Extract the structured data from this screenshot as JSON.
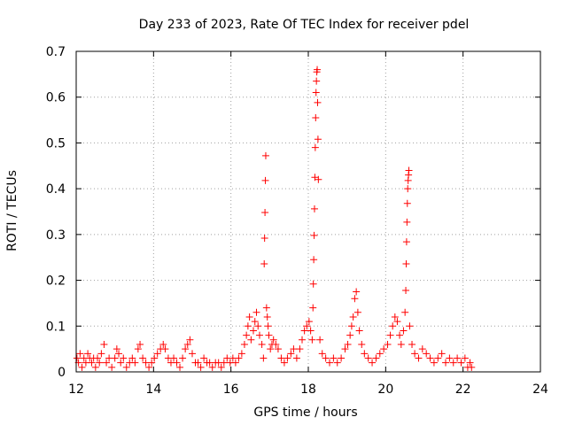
{
  "chart_data": {
    "type": "scatter",
    "title": "Day 233 of 2023, Rate Of TEC Index for receiver pdel",
    "xlabel": "GPS time / hours",
    "ylabel": "ROTI / TECUs",
    "xlim": [
      12,
      24
    ],
    "ylim": [
      0,
      0.7
    ],
    "xticks": [
      12,
      14,
      16,
      18,
      20,
      22,
      24
    ],
    "yticks": [
      0,
      0.1,
      0.2,
      0.3,
      0.4,
      0.5,
      0.6,
      0.7
    ],
    "xtick_labels": [
      "12",
      "14",
      "16",
      "18",
      "20",
      "22",
      "24"
    ],
    "ytick_labels": [
      "0",
      "0.1",
      "0.2",
      "0.3",
      "0.4",
      "0.5",
      "0.6",
      "0.7"
    ],
    "grid": true,
    "legend": false,
    "marker": "+",
    "color": "#ff0000",
    "series": [
      {
        "points": [
          [
            12.02,
            0.03
          ],
          [
            12.06,
            0.02
          ],
          [
            12.1,
            0.04
          ],
          [
            12.15,
            0.01
          ],
          [
            12.2,
            0.03
          ],
          [
            12.25,
            0.02
          ],
          [
            12.3,
            0.04
          ],
          [
            12.35,
            0.03
          ],
          [
            12.4,
            0.02
          ],
          [
            12.45,
            0.03
          ],
          [
            12.5,
            0.01
          ],
          [
            12.55,
            0.03
          ],
          [
            12.6,
            0.02
          ],
          [
            12.65,
            0.04
          ],
          [
            12.72,
            0.06
          ],
          [
            12.78,
            0.02
          ],
          [
            12.85,
            0.03
          ],
          [
            12.92,
            0.01
          ],
          [
            13.0,
            0.03
          ],
          [
            13.05,
            0.05
          ],
          [
            13.1,
            0.04
          ],
          [
            13.15,
            0.02
          ],
          [
            13.22,
            0.03
          ],
          [
            13.3,
            0.01
          ],
          [
            13.38,
            0.02
          ],
          [
            13.45,
            0.03
          ],
          [
            13.52,
            0.02
          ],
          [
            13.6,
            0.05
          ],
          [
            13.65,
            0.06
          ],
          [
            13.72,
            0.03
          ],
          [
            13.8,
            0.02
          ],
          [
            13.88,
            0.01
          ],
          [
            13.95,
            0.02
          ],
          [
            14.02,
            0.03
          ],
          [
            14.1,
            0.04
          ],
          [
            14.18,
            0.05
          ],
          [
            14.25,
            0.06
          ],
          [
            14.3,
            0.05
          ],
          [
            14.38,
            0.03
          ],
          [
            14.45,
            0.02
          ],
          [
            14.52,
            0.03
          ],
          [
            14.6,
            0.02
          ],
          [
            14.68,
            0.01
          ],
          [
            14.75,
            0.03
          ],
          [
            14.82,
            0.05
          ],
          [
            14.88,
            0.06
          ],
          [
            14.94,
            0.07
          ],
          [
            15.0,
            0.04
          ],
          [
            15.08,
            0.02
          ],
          [
            15.15,
            0.02
          ],
          [
            15.22,
            0.01
          ],
          [
            15.3,
            0.03
          ],
          [
            15.38,
            0.02
          ],
          [
            15.45,
            0.02
          ],
          [
            15.52,
            0.01
          ],
          [
            15.6,
            0.02
          ],
          [
            15.68,
            0.02
          ],
          [
            15.75,
            0.01
          ],
          [
            15.82,
            0.02
          ],
          [
            15.9,
            0.03
          ],
          [
            15.98,
            0.02
          ],
          [
            16.05,
            0.03
          ],
          [
            16.12,
            0.02
          ],
          [
            16.2,
            0.03
          ],
          [
            16.28,
            0.04
          ],
          [
            16.35,
            0.06
          ],
          [
            16.4,
            0.08
          ],
          [
            16.44,
            0.1
          ],
          [
            16.48,
            0.12
          ],
          [
            16.52,
            0.07
          ],
          [
            16.58,
            0.09
          ],
          [
            16.62,
            0.11
          ],
          [
            16.66,
            0.13
          ],
          [
            16.7,
            0.1
          ],
          [
            16.74,
            0.08
          ],
          [
            16.8,
            0.06
          ],
          [
            16.84,
            0.03
          ],
          [
            16.86,
            0.236
          ],
          [
            16.87,
            0.292
          ],
          [
            16.88,
            0.348
          ],
          [
            16.89,
            0.418
          ],
          [
            16.9,
            0.472
          ],
          [
            16.92,
            0.14
          ],
          [
            16.94,
            0.12
          ],
          [
            16.96,
            0.1
          ],
          [
            16.98,
            0.08
          ],
          [
            17.02,
            0.05
          ],
          [
            17.06,
            0.06
          ],
          [
            17.1,
            0.07
          ],
          [
            17.16,
            0.06
          ],
          [
            17.22,
            0.05
          ],
          [
            17.3,
            0.03
          ],
          [
            17.38,
            0.02
          ],
          [
            17.46,
            0.03
          ],
          [
            17.55,
            0.04
          ],
          [
            17.62,
            0.05
          ],
          [
            17.7,
            0.03
          ],
          [
            17.78,
            0.05
          ],
          [
            17.84,
            0.07
          ],
          [
            17.9,
            0.09
          ],
          [
            17.96,
            0.1
          ],
          [
            18.02,
            0.11
          ],
          [
            18.06,
            0.09
          ],
          [
            18.1,
            0.07
          ],
          [
            18.12,
            0.14
          ],
          [
            18.13,
            0.192
          ],
          [
            18.14,
            0.245
          ],
          [
            18.15,
            0.298
          ],
          [
            18.16,
            0.356
          ],
          [
            18.17,
            0.425
          ],
          [
            18.18,
            0.49
          ],
          [
            18.19,
            0.555
          ],
          [
            18.2,
            0.61
          ],
          [
            18.21,
            0.635
          ],
          [
            18.22,
            0.655
          ],
          [
            18.23,
            0.66
          ],
          [
            18.24,
            0.588
          ],
          [
            18.25,
            0.508
          ],
          [
            18.26,
            0.42
          ],
          [
            18.3,
            0.07
          ],
          [
            18.36,
            0.04
          ],
          [
            18.45,
            0.03
          ],
          [
            18.55,
            0.02
          ],
          [
            18.65,
            0.03
          ],
          [
            18.75,
            0.02
          ],
          [
            18.85,
            0.03
          ],
          [
            18.95,
            0.05
          ],
          [
            19.02,
            0.06
          ],
          [
            19.08,
            0.08
          ],
          [
            19.12,
            0.1
          ],
          [
            19.16,
            0.12
          ],
          [
            19.2,
            0.16
          ],
          [
            19.24,
            0.175
          ],
          [
            19.28,
            0.13
          ],
          [
            19.32,
            0.09
          ],
          [
            19.38,
            0.06
          ],
          [
            19.45,
            0.04
          ],
          [
            19.55,
            0.03
          ],
          [
            19.65,
            0.02
          ],
          [
            19.75,
            0.03
          ],
          [
            19.85,
            0.04
          ],
          [
            19.95,
            0.05
          ],
          [
            20.05,
            0.06
          ],
          [
            20.12,
            0.08
          ],
          [
            20.18,
            0.1
          ],
          [
            20.24,
            0.12
          ],
          [
            20.3,
            0.11
          ],
          [
            20.36,
            0.08
          ],
          [
            20.4,
            0.06
          ],
          [
            20.46,
            0.09
          ],
          [
            20.5,
            0.13
          ],
          [
            20.52,
            0.178
          ],
          [
            20.53,
            0.236
          ],
          [
            20.54,
            0.284
          ],
          [
            20.55,
            0.327
          ],
          [
            20.56,
            0.368
          ],
          [
            20.57,
            0.4
          ],
          [
            20.58,
            0.418
          ],
          [
            20.59,
            0.43
          ],
          [
            20.6,
            0.44
          ],
          [
            20.62,
            0.1
          ],
          [
            20.68,
            0.06
          ],
          [
            20.75,
            0.04
          ],
          [
            20.85,
            0.03
          ],
          [
            20.95,
            0.05
          ],
          [
            21.05,
            0.04
          ],
          [
            21.15,
            0.03
          ],
          [
            21.25,
            0.02
          ],
          [
            21.35,
            0.03
          ],
          [
            21.45,
            0.04
          ],
          [
            21.55,
            0.02
          ],
          [
            21.65,
            0.03
          ],
          [
            21.75,
            0.02
          ],
          [
            21.85,
            0.03
          ],
          [
            21.95,
            0.02
          ],
          [
            22.05,
            0.03
          ],
          [
            22.12,
            0.01
          ],
          [
            22.18,
            0.02
          ],
          [
            22.22,
            0.01
          ]
        ]
      }
    ]
  }
}
